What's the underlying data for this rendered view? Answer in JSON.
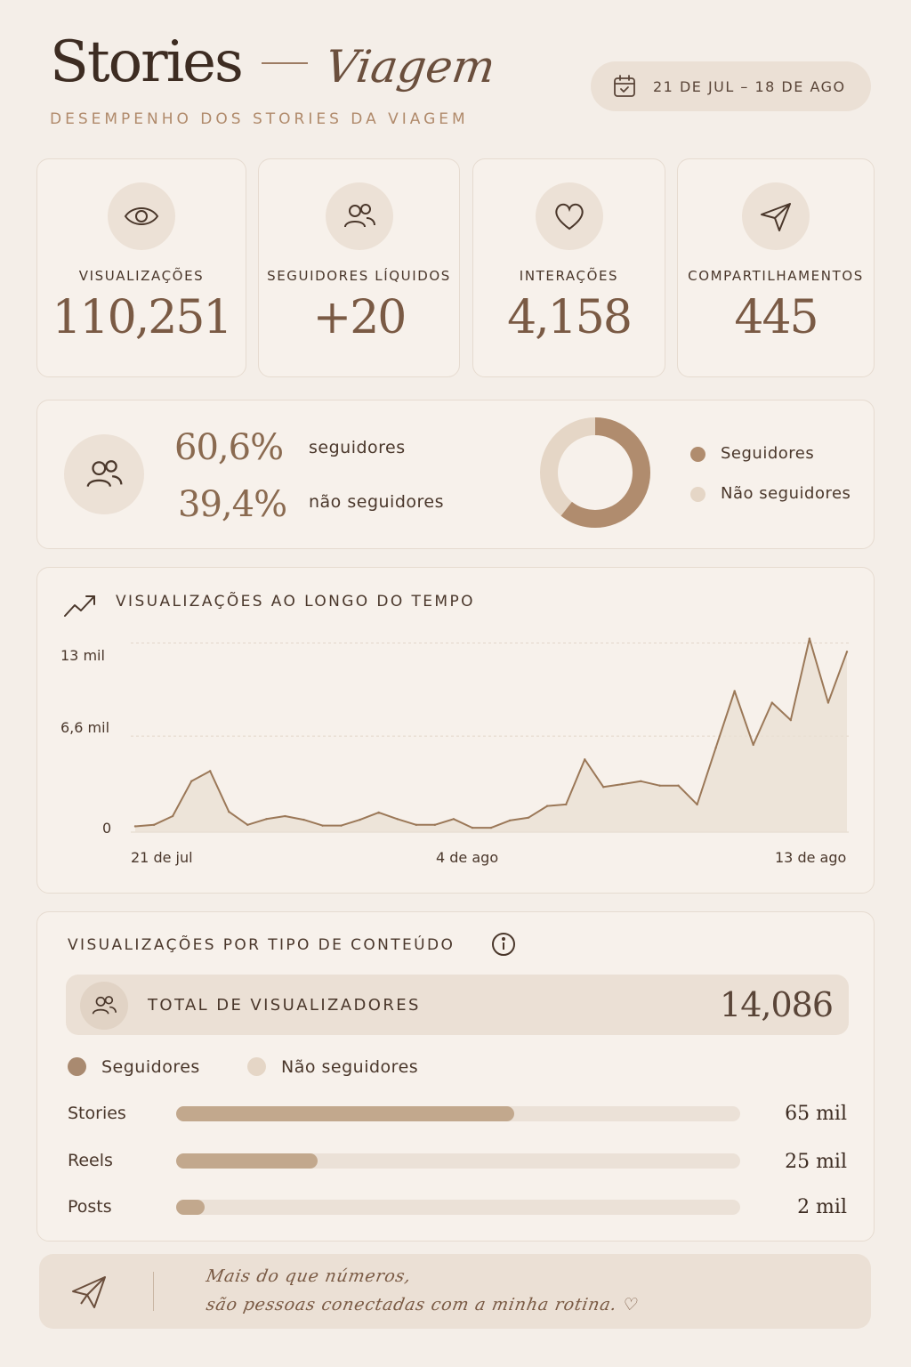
{
  "header": {
    "title": "Stories",
    "script_title": "Viagem",
    "subtitle": "DESEMPENHO DOS STORIES DA VIAGEM",
    "date_range": "21 DE JUL – 18 DE AGO",
    "date_icon": "calendar-icon"
  },
  "kpis": [
    {
      "icon": "eye-icon",
      "label": "VISUALIZAÇÕES",
      "value": "110,251"
    },
    {
      "icon": "users-icon",
      "label": "SEGUIDORES LÍQUIDOS",
      "value": "+20"
    },
    {
      "icon": "heart-icon",
      "label": "INTERAÇÕES",
      "value": "4,158"
    },
    {
      "icon": "send-icon",
      "label": "COMPARTILHAMENTOS",
      "value": "445"
    }
  ],
  "audience": {
    "followers_pct": "60,6%",
    "followers_label": "seguidores",
    "non_followers_pct": "39,4%",
    "non_followers_label": "não seguidores",
    "legend": [
      "Seguidores",
      "Não seguidores"
    ],
    "colors": {
      "followers": "#b08c6e",
      "non_followers": "#e5d6c6"
    },
    "donut": {
      "followers": 60.6,
      "non_followers": 39.4
    }
  },
  "line_chart": {
    "title": "VISUALIZAÇÕES AO LONGO DO TEMPO",
    "icon": "trend-up-icon",
    "chart_data": {
      "type": "area",
      "y_ticks": [
        "13 mil",
        "6,6 mil",
        "0"
      ],
      "x_ticks": [
        "21 de jul",
        "4 de ago",
        "13 de ago"
      ],
      "ylim": [
        0,
        14500
      ],
      "values": [
        400,
        500,
        1100,
        3500,
        4200,
        1400,
        500,
        900,
        1100,
        850,
        450,
        450,
        850,
        1350,
        900,
        500,
        500,
        900,
        300,
        300,
        800,
        1000,
        1800,
        1900,
        5000,
        3100,
        3300,
        3500,
        3200,
        3200,
        1900,
        5800,
        9700,
        6000,
        8900,
        7700,
        13300,
        8900,
        12400
      ]
    }
  },
  "content": {
    "title": "VISUALIZAÇÕES POR TIPO DE CONTEÚDO",
    "info_icon": "info-icon",
    "total_label": "TOTAL DE VISUALIZADORES",
    "total_value": "14,086",
    "legend": [
      "Seguidores",
      "Não seguidores"
    ],
    "chart_data": {
      "type": "bar",
      "categories": [
        "Stories",
        "Reels",
        "Posts"
      ],
      "values": [
        65,
        25,
        2
      ],
      "value_labels": [
        "65 mil",
        "25 mil",
        "2 mil"
      ],
      "fill_fraction": [
        0.6,
        0.25,
        0.05
      ]
    }
  },
  "footer": {
    "icon": "send-icon",
    "line1": "Mais do que números,",
    "line2": "são pessoas conectadas com a minha rotina. ♡"
  }
}
